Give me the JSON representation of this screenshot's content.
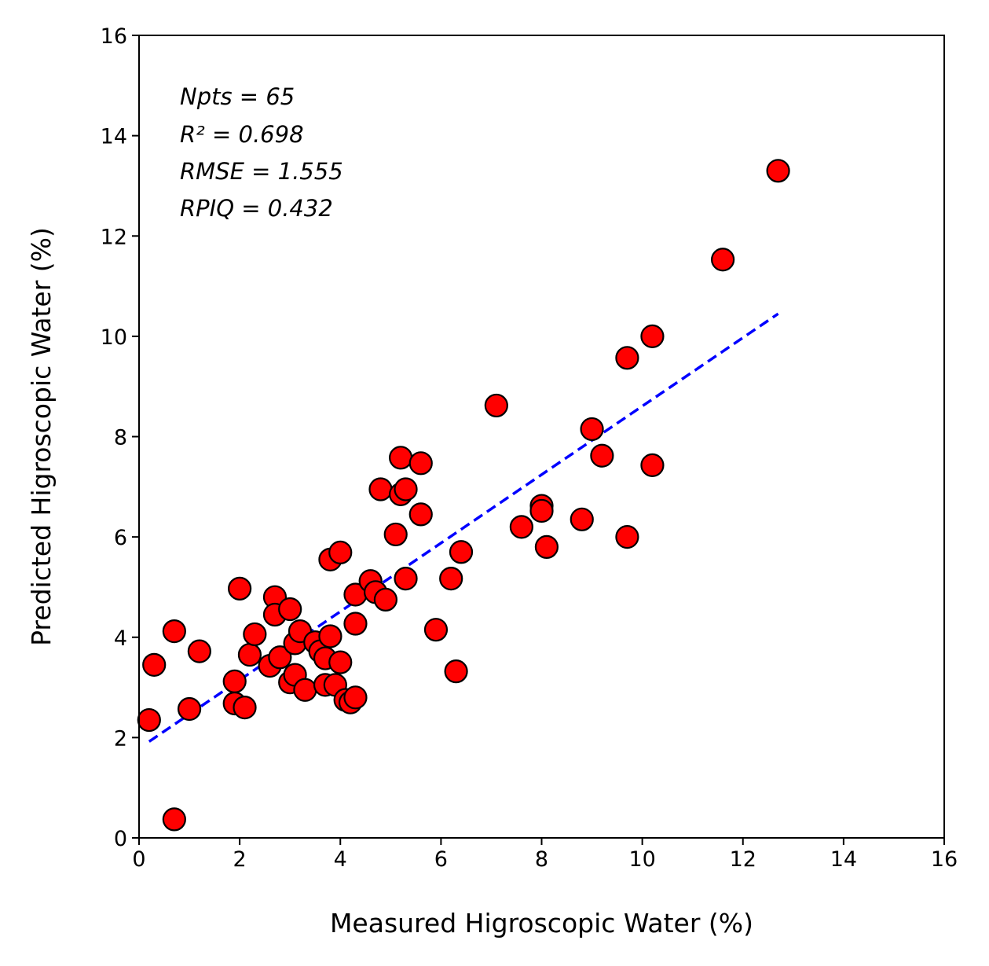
{
  "chart_data": {
    "type": "scatter",
    "title": "",
    "xlabel": "Measured Higroscopic Water (%)",
    "ylabel": "Predicted Higroscopic Water (%)",
    "xlim": [
      0,
      16
    ],
    "ylim": [
      0,
      16
    ],
    "xticks": [
      "0",
      "2",
      "4",
      "6",
      "8",
      "10",
      "12",
      "14",
      "16"
    ],
    "yticks": [
      "0",
      "2",
      "4",
      "6",
      "8",
      "10",
      "12",
      "14",
      "16"
    ],
    "grid": false,
    "marker_color": "#ff0000",
    "marker_edge_color": "#000000",
    "fit_line_color": "#0000ff",
    "stats": {
      "npts": "Npts = 65",
      "r2": "R² = 0.698",
      "rmse": "RMSE = 1.555",
      "rpiq": "RPIQ = 0.432"
    },
    "fit_line": {
      "x": [
        0.2,
        12.7
      ],
      "y": [
        1.92,
        10.45
      ]
    },
    "points": {
      "x": [
        0.2,
        0.3,
        0.7,
        0.7,
        1.0,
        1.2,
        1.9,
        1.9,
        2.0,
        2.1,
        2.2,
        2.3,
        2.6,
        2.7,
        2.7,
        2.8,
        3.0,
        3.0,
        3.1,
        3.1,
        3.2,
        3.3,
        3.5,
        3.6,
        3.7,
        3.7,
        3.8,
        3.8,
        3.9,
        4.0,
        4.0,
        4.1,
        4.2,
        4.3,
        4.3,
        4.3,
        4.6,
        4.7,
        4.8,
        4.9,
        5.1,
        5.2,
        5.2,
        5.3,
        5.3,
        5.6,
        5.6,
        5.9,
        6.2,
        6.3,
        6.4,
        7.1,
        7.6,
        8.0,
        8.0,
        8.1,
        8.8,
        9.0,
        9.2,
        9.7,
        9.7,
        10.2,
        10.2,
        11.6,
        12.7
      ],
      "y": [
        2.35,
        3.45,
        4.12,
        0.37,
        2.57,
        3.72,
        3.12,
        2.68,
        4.97,
        2.6,
        3.65,
        4.06,
        3.43,
        4.8,
        4.45,
        3.6,
        3.1,
        4.56,
        3.25,
        3.88,
        4.12,
        2.95,
        3.9,
        3.72,
        3.58,
        3.05,
        5.55,
        4.02,
        3.05,
        3.5,
        5.69,
        2.75,
        2.7,
        4.27,
        2.8,
        4.85,
        5.12,
        4.9,
        6.95,
        4.75,
        6.05,
        7.58,
        6.85,
        6.95,
        5.17,
        7.47,
        6.45,
        4.15,
        5.17,
        3.32,
        5.7,
        8.62,
        6.2,
        6.62,
        6.52,
        5.8,
        6.35,
        8.15,
        7.62,
        9.57,
        6.0,
        10.0,
        7.43,
        11.53,
        13.3
      ]
    }
  }
}
